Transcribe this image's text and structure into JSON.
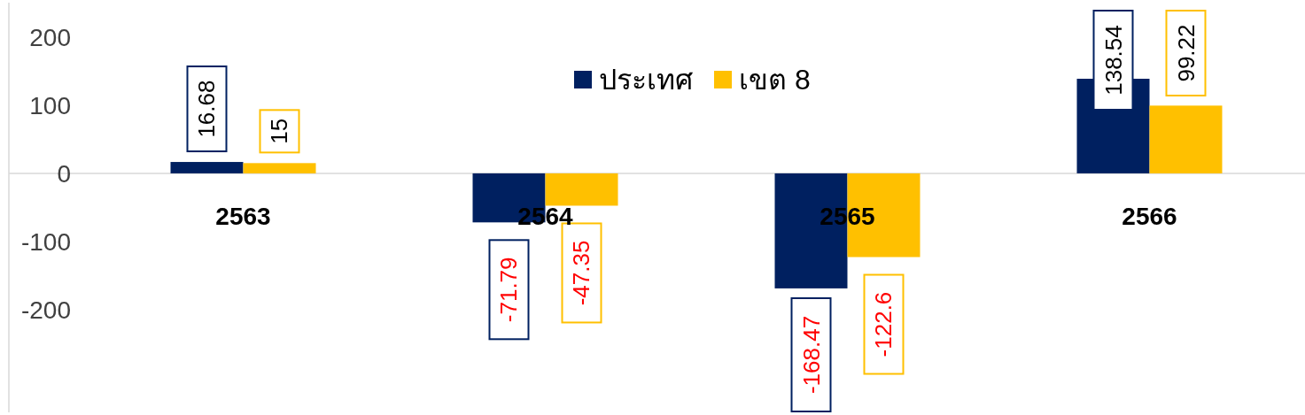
{
  "chart_data": {
    "type": "bar",
    "categories": [
      "2563",
      "2564",
      "2565",
      "2566"
    ],
    "series": [
      {
        "name": "ประเทศ",
        "color": "#002060",
        "values": [
          16.68,
          -71.79,
          -168.47,
          138.54
        ]
      },
      {
        "name": "เขต 8",
        "color": "#ffc000",
        "values": [
          15,
          -47.35,
          -122.6,
          99.22
        ]
      }
    ],
    "ylim": [
      -350,
      250
    ],
    "yticks": [
      -200,
      -100,
      0,
      100,
      200
    ],
    "data_labels": true,
    "legend": "top",
    "grid": false
  }
}
